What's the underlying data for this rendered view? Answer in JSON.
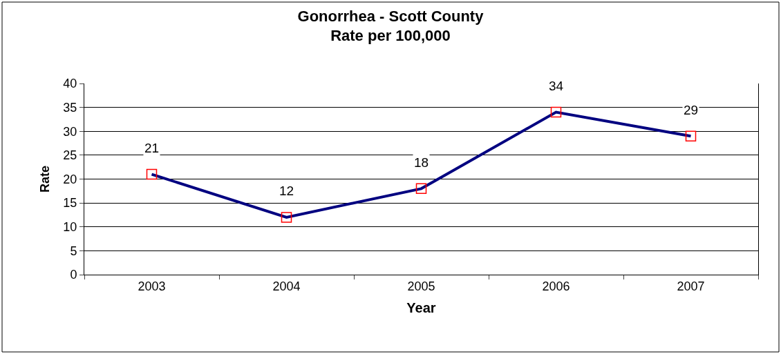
{
  "chart_data": {
    "type": "line",
    "title": "Gonorrhea - Scott County\nRate per 100,000",
    "xlabel": "Year",
    "ylabel": "Rate",
    "categories": [
      "2003",
      "2004",
      "2005",
      "2006",
      "2007"
    ],
    "series": [
      {
        "color": "#000080",
        "colors": [
          "#ff0000",
          "#ff0000",
          "#ff0000",
          "#ff0000",
          "#ff0000"
        ],
        "values": [
          21,
          12,
          18,
          34,
          29
        ]
      }
    ],
    "ylim": [
      0,
      40
    ],
    "yticks": [
      0,
      5,
      10,
      15,
      20,
      25,
      30,
      35,
      40
    ],
    "grid": "y",
    "marker": "square",
    "data_labels": true,
    "legend": false
  }
}
